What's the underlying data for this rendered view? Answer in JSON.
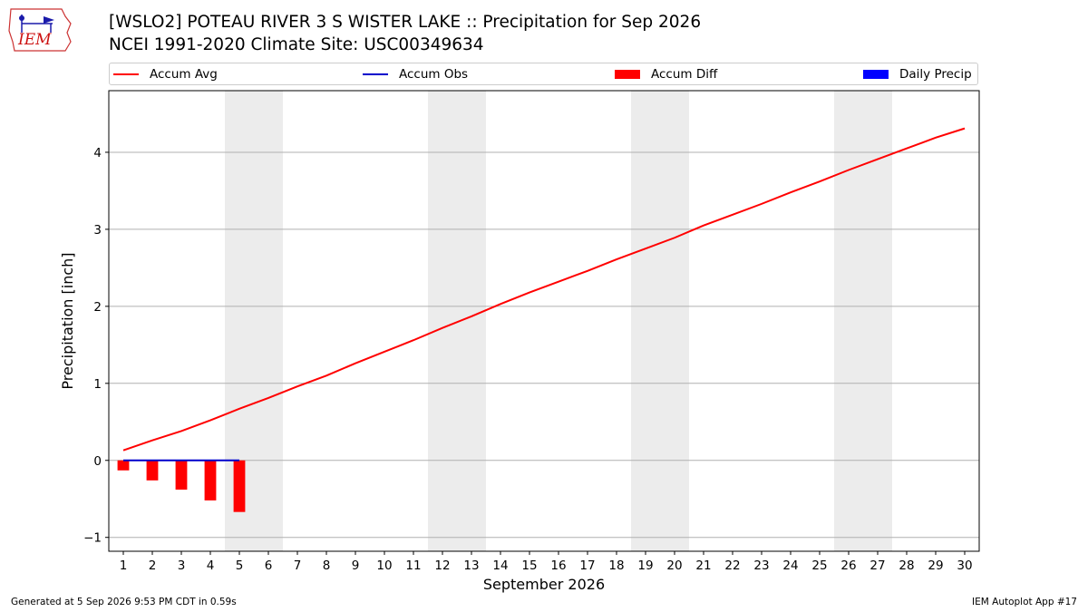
{
  "header": {
    "title": "[WSLO2] POTEAU RIVER 3 S WISTER LAKE :: Precipitation for Sep 2026",
    "subtitle": "NCEI 1991-2020 Climate Site: USC00349634"
  },
  "logo": {
    "text": "IEM",
    "icon": "iem-logo-icon"
  },
  "legend": {
    "items": [
      {
        "label": "Accum Avg",
        "kind": "line",
        "color": "#ff0000"
      },
      {
        "label": "Accum Obs",
        "kind": "line",
        "color": "#0000cc"
      },
      {
        "label": "Accum Diff",
        "kind": "box",
        "color": "#ff0000"
      },
      {
        "label": "Daily Precip",
        "kind": "box",
        "color": "#0000ff"
      }
    ]
  },
  "footer": {
    "generated": "Generated at 5 Sep 2026 9:53 PM CDT in 0.59s",
    "app": "IEM Autoplot App #17"
  },
  "chart_data": {
    "type": "line",
    "xlabel": "September 2026",
    "ylabel": "Precipitation [inch]",
    "x": [
      1,
      2,
      3,
      4,
      5,
      6,
      7,
      8,
      9,
      10,
      11,
      12,
      13,
      14,
      15,
      16,
      17,
      18,
      19,
      20,
      21,
      22,
      23,
      24,
      25,
      26,
      27,
      28,
      29,
      30
    ],
    "xlim": [
      0.5,
      30.5
    ],
    "ylim": [
      -1.18,
      4.8
    ],
    "yticks": [
      -1,
      0,
      1,
      2,
      3,
      4
    ],
    "grid": "horizontal",
    "weekend_shading": [
      [
        4.5,
        6.5
      ],
      [
        11.5,
        13.5
      ],
      [
        18.5,
        20.5
      ],
      [
        25.5,
        27.5
      ]
    ],
    "legend_position": "top",
    "series": [
      {
        "name": "Accum Avg",
        "type": "line",
        "color": "#ff0000",
        "values": [
          0.13,
          0.26,
          0.38,
          0.52,
          0.67,
          0.81,
          0.96,
          1.1,
          1.26,
          1.41,
          1.56,
          1.72,
          1.87,
          2.03,
          2.18,
          2.32,
          2.46,
          2.61,
          2.75,
          2.89,
          3.05,
          3.19,
          3.33,
          3.48,
          3.62,
          3.77,
          3.91,
          4.05,
          4.19,
          4.31
        ]
      },
      {
        "name": "Accum Obs",
        "type": "line",
        "color": "#0000cc",
        "x": [
          1,
          2,
          3,
          4,
          5
        ],
        "values": [
          0,
          0,
          0,
          0,
          0
        ]
      },
      {
        "name": "Accum Diff",
        "type": "bar",
        "color": "#ff0000",
        "x": [
          1,
          2,
          3,
          4,
          5
        ],
        "values": [
          -0.13,
          -0.26,
          -0.38,
          -0.52,
          -0.67
        ]
      },
      {
        "name": "Daily Precip",
        "type": "bar",
        "color": "#0000ff",
        "x": [
          1,
          2,
          3,
          4,
          5
        ],
        "values": [
          0,
          0,
          0,
          0,
          0
        ]
      }
    ]
  }
}
